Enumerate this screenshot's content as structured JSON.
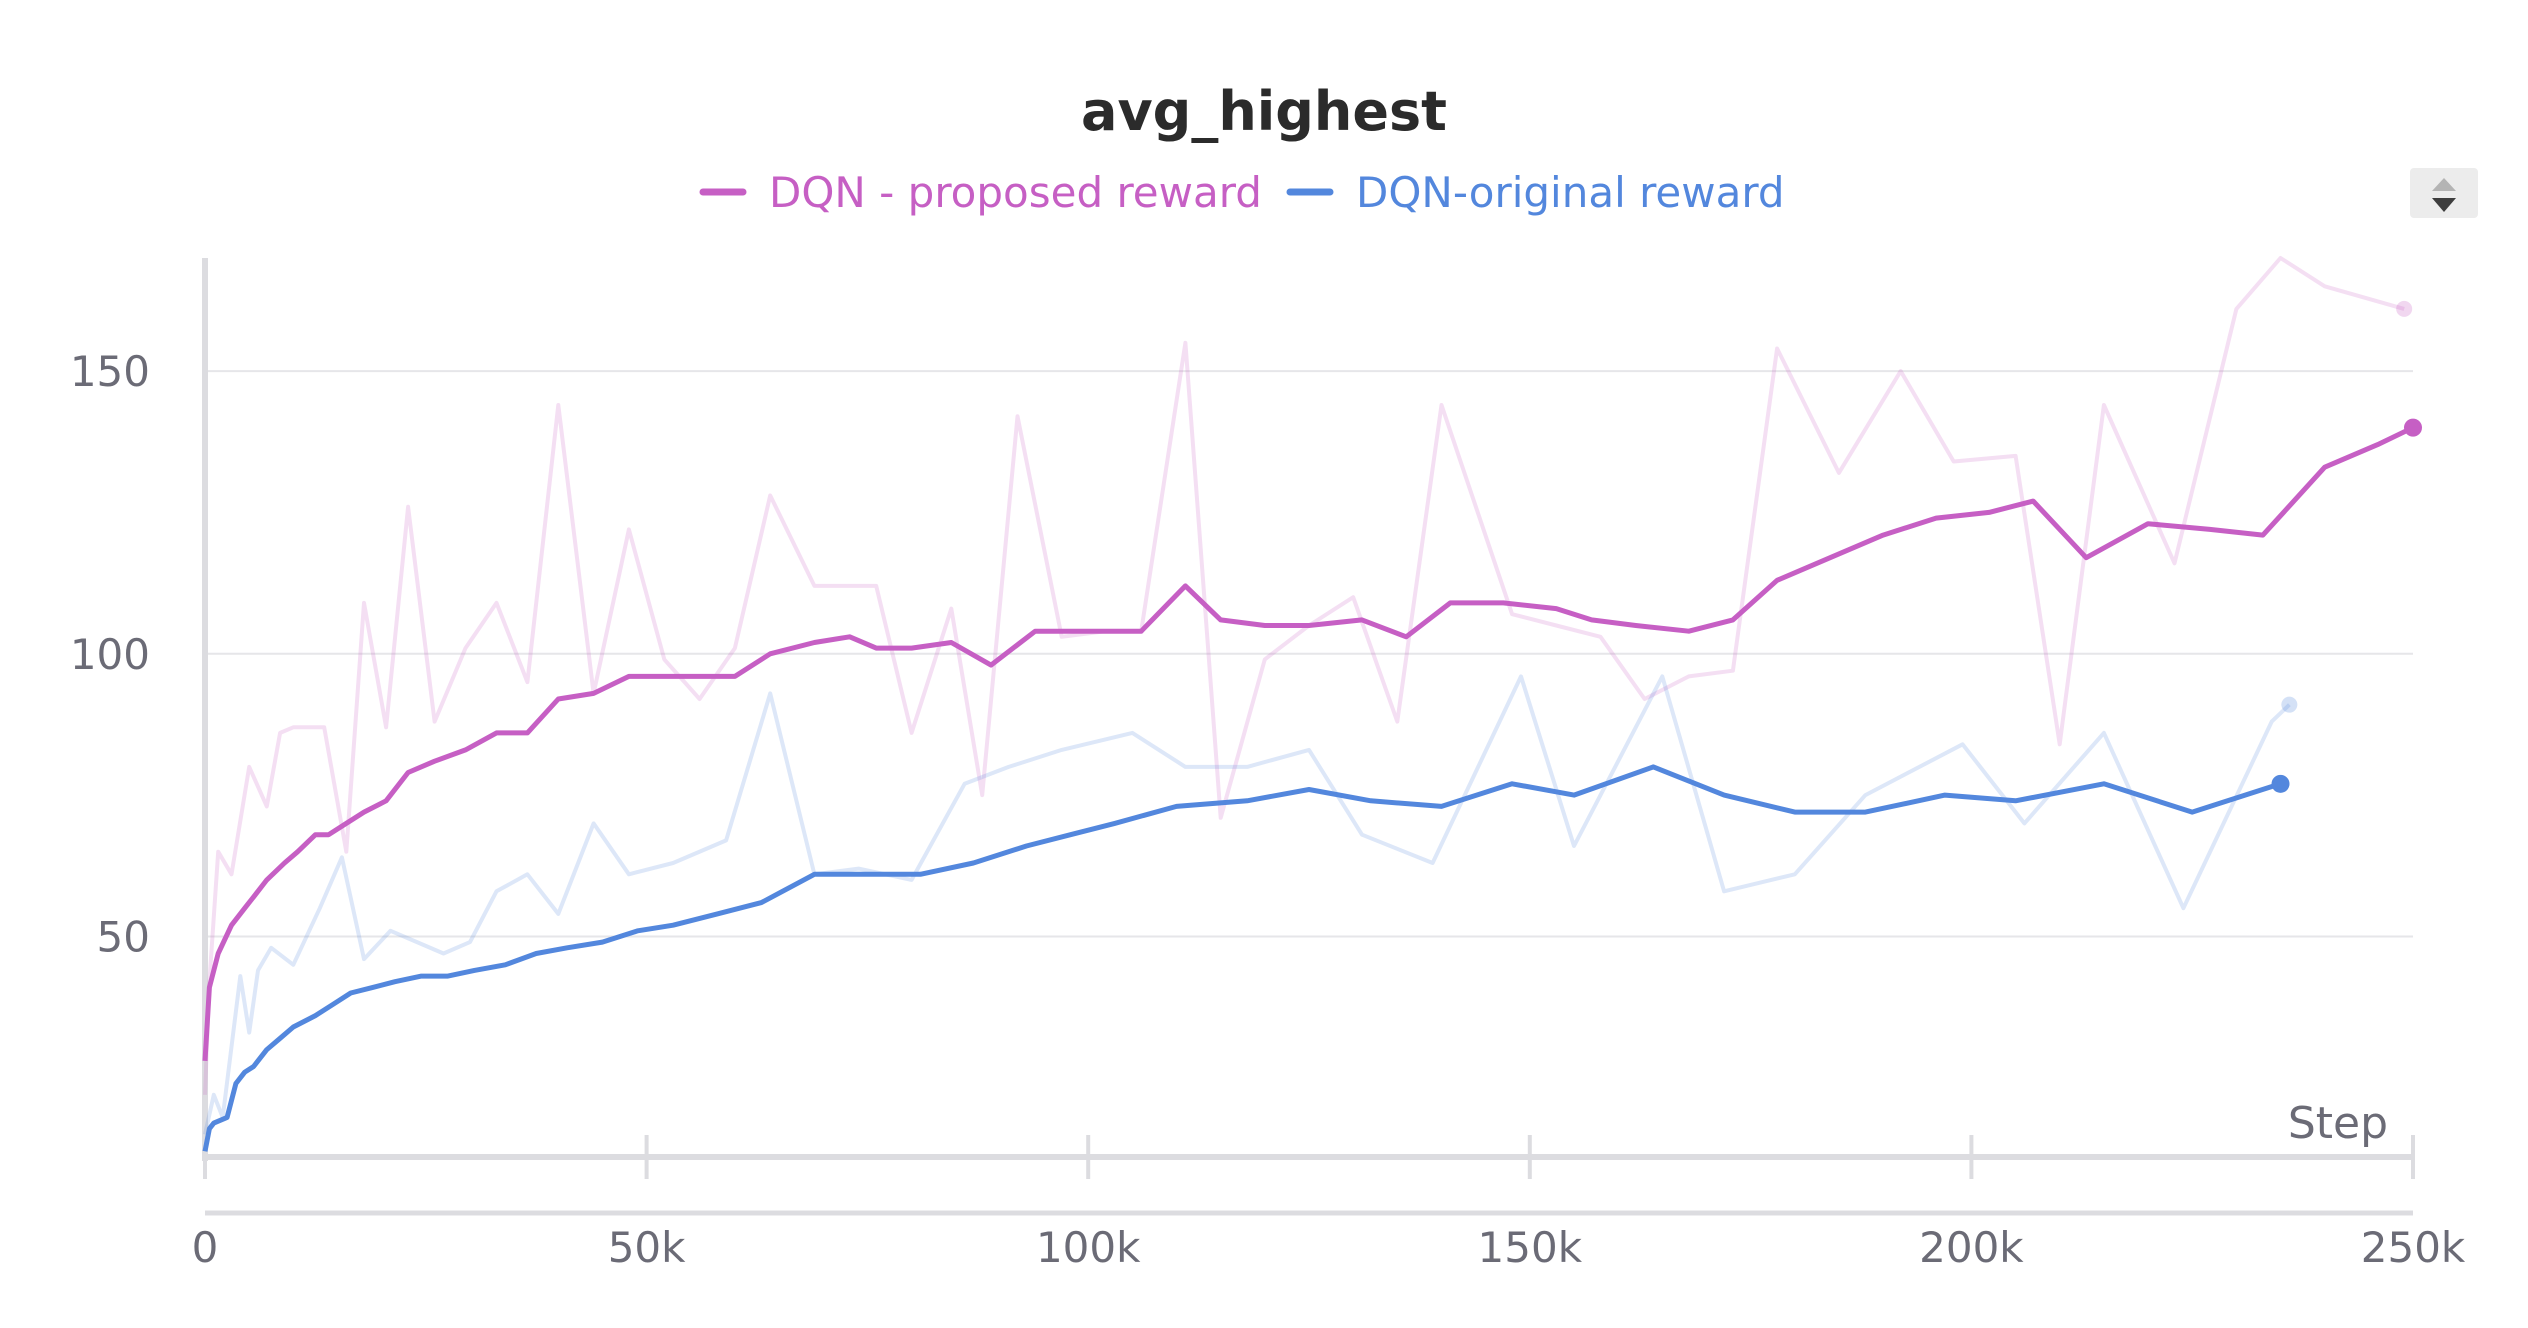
{
  "chart_data": {
    "type": "line",
    "title": "avg_highest",
    "xlabel": "Step",
    "ylabel": "",
    "xlim": [
      0,
      250000
    ],
    "ylim": [
      11,
      170
    ],
    "x_ticks": [
      0,
      50000,
      100000,
      150000,
      200000,
      250000
    ],
    "x_tick_labels": [
      "0",
      "50k",
      "100k",
      "150k",
      "200k",
      "250k"
    ],
    "y_ticks": [
      50,
      100,
      150
    ],
    "y_tick_labels": [
      "50",
      "100",
      "150"
    ],
    "grid": true,
    "legend_position": "top-center",
    "series": [
      {
        "name": "DQN - proposed reward",
        "color": "#c65fc4",
        "raw": {
          "x": [
            0,
            500,
            1500,
            3000,
            5000,
            7000,
            8500,
            10000,
            12500,
            13500,
            16000,
            18000,
            20500,
            23000,
            26000,
            29500,
            33000,
            36500,
            40000,
            44000,
            48000,
            52000,
            56000,
            60000,
            64000,
            69000,
            73000,
            76000,
            80000,
            84500,
            88000,
            92000,
            97000,
            102000,
            106000,
            111000,
            115000,
            120000,
            125000,
            130000,
            135000,
            140000,
            148000,
            153000,
            158000,
            163000,
            168000,
            173000,
            178000,
            185000,
            192000,
            198000,
            205000,
            210000,
            215000,
            223000,
            230000,
            235000,
            240000,
            249000
          ],
          "y": [
            22,
            42,
            65,
            61,
            80,
            73,
            86,
            87,
            87,
            87,
            65,
            109,
            87,
            126,
            88,
            101,
            109,
            95,
            144,
            93,
            122,
            99,
            92,
            101,
            128,
            112,
            112,
            112,
            86,
            108,
            75,
            142,
            103,
            104,
            104,
            155,
            71,
            99,
            105,
            110,
            88,
            144,
            107,
            105,
            103,
            92,
            96,
            97,
            154,
            132,
            150,
            134,
            135,
            84,
            144,
            116,
            161,
            170,
            165,
            161
          ]
        },
        "smoothed": {
          "x": [
            0,
            500,
            1500,
            3000,
            4500,
            5500,
            7000,
            9000,
            10500,
            12500,
            14000,
            16000,
            18000,
            20500,
            23000,
            26000,
            29500,
            33000,
            36500,
            40000,
            44000,
            48000,
            52000,
            56000,
            60000,
            64000,
            69000,
            73000,
            76000,
            80000,
            84500,
            89000,
            94000,
            98000,
            102000,
            106000,
            111000,
            115000,
            120000,
            125000,
            131000,
            136000,
            141000,
            147000,
            153000,
            157000,
            162000,
            168000,
            173000,
            178000,
            184000,
            190000,
            196000,
            202000,
            207000,
            213000,
            220000,
            227000,
            233000,
            240000,
            246000,
            250000
          ],
          "y": [
            28,
            41,
            47,
            52,
            55,
            57,
            60,
            63,
            65,
            68,
            68,
            70,
            72,
            74,
            79,
            81,
            83,
            86,
            86,
            92,
            93,
            96,
            96,
            96,
            96,
            100,
            102,
            103,
            101,
            101,
            102,
            98,
            104,
            104,
            104,
            104,
            112,
            106,
            105,
            105,
            106,
            103,
            109,
            109,
            108,
            106,
            105,
            104,
            106,
            113,
            117,
            121,
            124,
            125,
            127,
            117,
            123,
            122,
            121,
            133,
            137,
            140
          ]
        }
      },
      {
        "name": "DQN-original reward",
        "color": "#5387dd",
        "raw": {
          "x": [
            0,
            1000,
            2000,
            4000,
            5000,
            6000,
            7500,
            10000,
            13000,
            15500,
            18000,
            21000,
            24000,
            27000,
            30000,
            33000,
            36500,
            40000,
            44000,
            48000,
            53000,
            59000,
            64000,
            69000,
            74000,
            80000,
            86000,
            91000,
            97000,
            105000,
            111000,
            118000,
            125000,
            131000,
            139000,
            149000,
            155000,
            165000,
            172000,
            180000,
            188000,
            199000,
            206000,
            215000,
            224000,
            234000,
            236000
          ],
          "y": [
            15,
            22,
            18,
            43,
            33,
            44,
            48,
            45,
            55,
            64,
            46,
            51,
            49,
            47,
            49,
            58,
            61,
            54,
            70,
            61,
            63,
            67,
            93,
            61,
            62,
            60,
            77,
            80,
            83,
            86,
            80,
            80,
            83,
            68,
            63,
            96,
            66,
            96,
            58,
            61,
            75,
            84,
            70,
            86,
            55,
            88,
            91
          ]
        },
        "smoothed": {
          "x": [
            0,
            500,
            1000,
            2500,
            3500,
            4500,
            5500,
            7000,
            8500,
            10000,
            12500,
            14500,
            16500,
            19000,
            21500,
            24500,
            27500,
            30500,
            34000,
            37500,
            41000,
            45000,
            49000,
            53000,
            58000,
            63000,
            69000,
            75000,
            81000,
            87000,
            93000,
            98000,
            103000,
            110000,
            118000,
            125000,
            132000,
            140000,
            148000,
            155000,
            164000,
            172000,
            180000,
            188000,
            197000,
            205000,
            215000,
            225000,
            235000
          ],
          "y": [
            12,
            16,
            17,
            18,
            24,
            26,
            27,
            30,
            32,
            34,
            36,
            38,
            40,
            41,
            42,
            43,
            43,
            44,
            45,
            47,
            48,
            49,
            51,
            52,
            54,
            56,
            61,
            61,
            61,
            63,
            66,
            68,
            70,
            73,
            74,
            76,
            74,
            73,
            77,
            75,
            80,
            75,
            72,
            72,
            75,
            74,
            77,
            72,
            77
          ]
        }
      }
    ]
  }
}
